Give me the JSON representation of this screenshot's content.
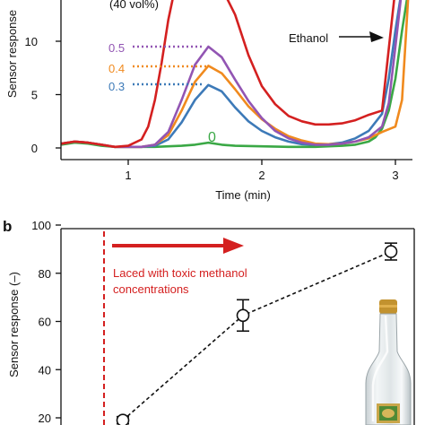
{
  "chart_data": [
    {
      "type": "line",
      "panel": "",
      "title": "(40 vol%)",
      "xlabel": "Time (min)",
      "ylabel": "Sensor response",
      "xlim": [
        0.5,
        3.2
      ],
      "ylim": [
        -1,
        15
      ],
      "xticks": [
        1,
        2,
        3
      ],
      "yticks": [
        0,
        5,
        10
      ],
      "grid": false,
      "series": [
        {
          "label": "0",
          "color": "#3aa845",
          "x": [
            0.5,
            0.6,
            0.7,
            0.8,
            0.9,
            1.0,
            1.2,
            1.4,
            1.5,
            1.6,
            1.7,
            1.8,
            2.0,
            2.2,
            2.4,
            2.6,
            2.7,
            2.8,
            2.85,
            2.9,
            2.95,
            3.0,
            3.05,
            3.1
          ],
          "y": [
            0.3,
            0.5,
            0.4,
            0.2,
            0.1,
            0.1,
            0.1,
            0.2,
            0.3,
            0.5,
            0.3,
            0.2,
            0.15,
            0.1,
            0.1,
            0.2,
            0.3,
            0.6,
            1.0,
            1.8,
            3.5,
            6.5,
            11,
            15
          ]
        },
        {
          "label": "0.3",
          "color": "#3d7ab8",
          "x": [
            0.5,
            0.6,
            0.7,
            0.8,
            0.9,
            1.0,
            1.1,
            1.2,
            1.3,
            1.4,
            1.5,
            1.6,
            1.7,
            1.8,
            1.9,
            2.0,
            2.1,
            2.2,
            2.3,
            2.4,
            2.5,
            2.6,
            2.7,
            2.8,
            2.9,
            2.95,
            3.0,
            3.05
          ],
          "y": [
            0.4,
            0.6,
            0.5,
            0.3,
            0.1,
            0.1,
            0.1,
            0.2,
            0.8,
            2.4,
            4.5,
            5.9,
            5.3,
            3.8,
            2.5,
            1.6,
            1.0,
            0.6,
            0.35,
            0.3,
            0.35,
            0.5,
            0.9,
            1.6,
            3.2,
            6.5,
            11,
            15
          ]
        },
        {
          "label": "0.4",
          "color": "#f08a1e",
          "x": [
            0.5,
            0.6,
            0.7,
            0.8,
            0.9,
            1.0,
            1.1,
            1.2,
            1.3,
            1.4,
            1.5,
            1.6,
            1.7,
            1.8,
            1.9,
            2.0,
            2.1,
            2.2,
            2.3,
            2.4,
            2.5,
            2.6,
            2.7,
            2.8,
            2.9,
            3.0,
            3.05,
            3.1
          ],
          "y": [
            0.4,
            0.6,
            0.5,
            0.3,
            0.1,
            0.1,
            0.1,
            0.3,
            1.2,
            3.5,
            6.2,
            7.7,
            7.0,
            5.5,
            3.9,
            2.7,
            1.8,
            1.1,
            0.7,
            0.4,
            0.35,
            0.4,
            0.6,
            0.9,
            1.5,
            2.0,
            4.5,
            15
          ]
        },
        {
          "label": "0.5",
          "color": "#9255b3",
          "x": [
            0.5,
            0.6,
            0.7,
            0.8,
            0.9,
            1.0,
            1.1,
            1.2,
            1.3,
            1.4,
            1.5,
            1.6,
            1.7,
            1.8,
            1.9,
            2.0,
            2.1,
            2.2,
            2.3,
            2.4,
            2.5,
            2.6,
            2.7,
            2.8,
            2.9,
            2.95,
            3.0,
            3.05
          ],
          "y": [
            0.4,
            0.6,
            0.5,
            0.3,
            0.1,
            0.1,
            0.1,
            0.3,
            1.5,
            4.5,
            7.8,
            9.5,
            8.5,
            6.4,
            4.4,
            2.8,
            1.6,
            0.9,
            0.5,
            0.3,
            0.3,
            0.4,
            0.6,
            1.0,
            2.0,
            4.2,
            9.5,
            15
          ]
        },
        {
          "label": "",
          "color": "#d42020",
          "x": [
            0.5,
            0.6,
            0.7,
            0.8,
            0.9,
            1.0,
            1.1,
            1.15,
            1.2,
            1.25,
            1.3,
            1.35,
            1.4,
            1.5,
            1.6,
            1.7,
            1.8,
            1.9,
            2.0,
            2.1,
            2.2,
            2.3,
            2.4,
            2.5,
            2.6,
            2.7,
            2.8,
            2.9,
            3.0
          ],
          "y": [
            0.4,
            0.6,
            0.5,
            0.3,
            0.1,
            0.2,
            0.8,
            2.0,
            4.5,
            8.0,
            12,
            15,
            15,
            15,
            15,
            15,
            12.5,
            8.7,
            5.8,
            4.1,
            3.0,
            2.5,
            2.2,
            2.2,
            2.3,
            2.6,
            3.1,
            3.5,
            15
          ]
        }
      ],
      "annotations": {
        "ethanol": "Ethanol",
        "label_0": "0",
        "label_03": "0.3",
        "label_04": "0.4",
        "label_05": "0.5"
      }
    },
    {
      "type": "line",
      "panel": "b",
      "title": "",
      "xlabel": "",
      "ylabel": "Sensor response (–)",
      "xlim": [
        0,
        1
      ],
      "ylim": [
        17,
        100
      ],
      "yticks": [
        20,
        40,
        60,
        80,
        100
      ],
      "grid": false,
      "series": [
        {
          "name": "",
          "style": "dashed",
          "color": "#111111",
          "x": [
            0.1,
            0.5,
            0.9
          ],
          "y": [
            19,
            62.5,
            89
          ],
          "yerr": [
            1.5,
            6.5,
            3.5
          ]
        }
      ],
      "annotation": "Laced with toxic methanol concentrations",
      "annotation_lines": [
        "Laced with toxic methanol",
        "concentrations"
      ]
    }
  ],
  "colors": {
    "red": "#d42020",
    "purple": "#9255b3",
    "orange": "#f08a1e",
    "blue": "#3d7ab8",
    "green": "#3aa845"
  },
  "images": {
    "bottle": "liquor-bottle"
  }
}
